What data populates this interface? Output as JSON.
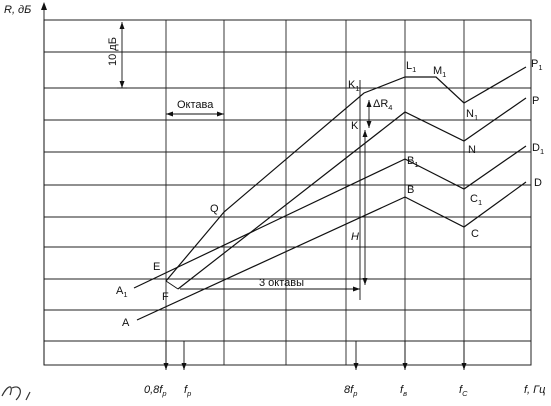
{
  "axes": {
    "y_label": "R, дБ",
    "x_label": "f, Гц"
  },
  "x_ticks": [
    {
      "id": "08fp",
      "text": "0,8f",
      "sub": "р"
    },
    {
      "id": "fp",
      "text": "f",
      "sub": "р"
    },
    {
      "id": "8fp",
      "text": "8f",
      "sub": "р"
    },
    {
      "id": "fv",
      "text": "f",
      "sub": "в"
    },
    {
      "id": "fc",
      "text": "f",
      "sub": "C"
    }
  ],
  "annotations": {
    "scale": "10 дБ",
    "octave": "Октава",
    "three_octaves": "3 октавы",
    "delta": "ΔR",
    "delta_sub": "4",
    "height": "H"
  },
  "points": [
    {
      "id": "A",
      "text": "A",
      "sub": ""
    },
    {
      "id": "A1",
      "text": "A",
      "sub": "1"
    },
    {
      "id": "E",
      "text": "E",
      "sub": ""
    },
    {
      "id": "F",
      "text": "F",
      "sub": ""
    },
    {
      "id": "Q",
      "text": "Q",
      "sub": ""
    },
    {
      "id": "K",
      "text": "K",
      "sub": ""
    },
    {
      "id": "K1",
      "text": "K",
      "sub": "1"
    },
    {
      "id": "L1",
      "text": "L",
      "sub": "1"
    },
    {
      "id": "M1",
      "text": "M",
      "sub": "1"
    },
    {
      "id": "N1",
      "text": "N",
      "sub": "1"
    },
    {
      "id": "N",
      "text": "N",
      "sub": ""
    },
    {
      "id": "P1",
      "text": "P",
      "sub": "1"
    },
    {
      "id": "P",
      "text": "P",
      "sub": ""
    },
    {
      "id": "B1",
      "text": "B",
      "sub": "1"
    },
    {
      "id": "B",
      "text": "B",
      "sub": ""
    },
    {
      "id": "C1",
      "text": "C",
      "sub": "1"
    },
    {
      "id": "C",
      "text": "C",
      "sub": ""
    },
    {
      "id": "D1",
      "text": "D",
      "sub": "1"
    },
    {
      "id": "D",
      "text": "D",
      "sub": ""
    }
  ]
}
